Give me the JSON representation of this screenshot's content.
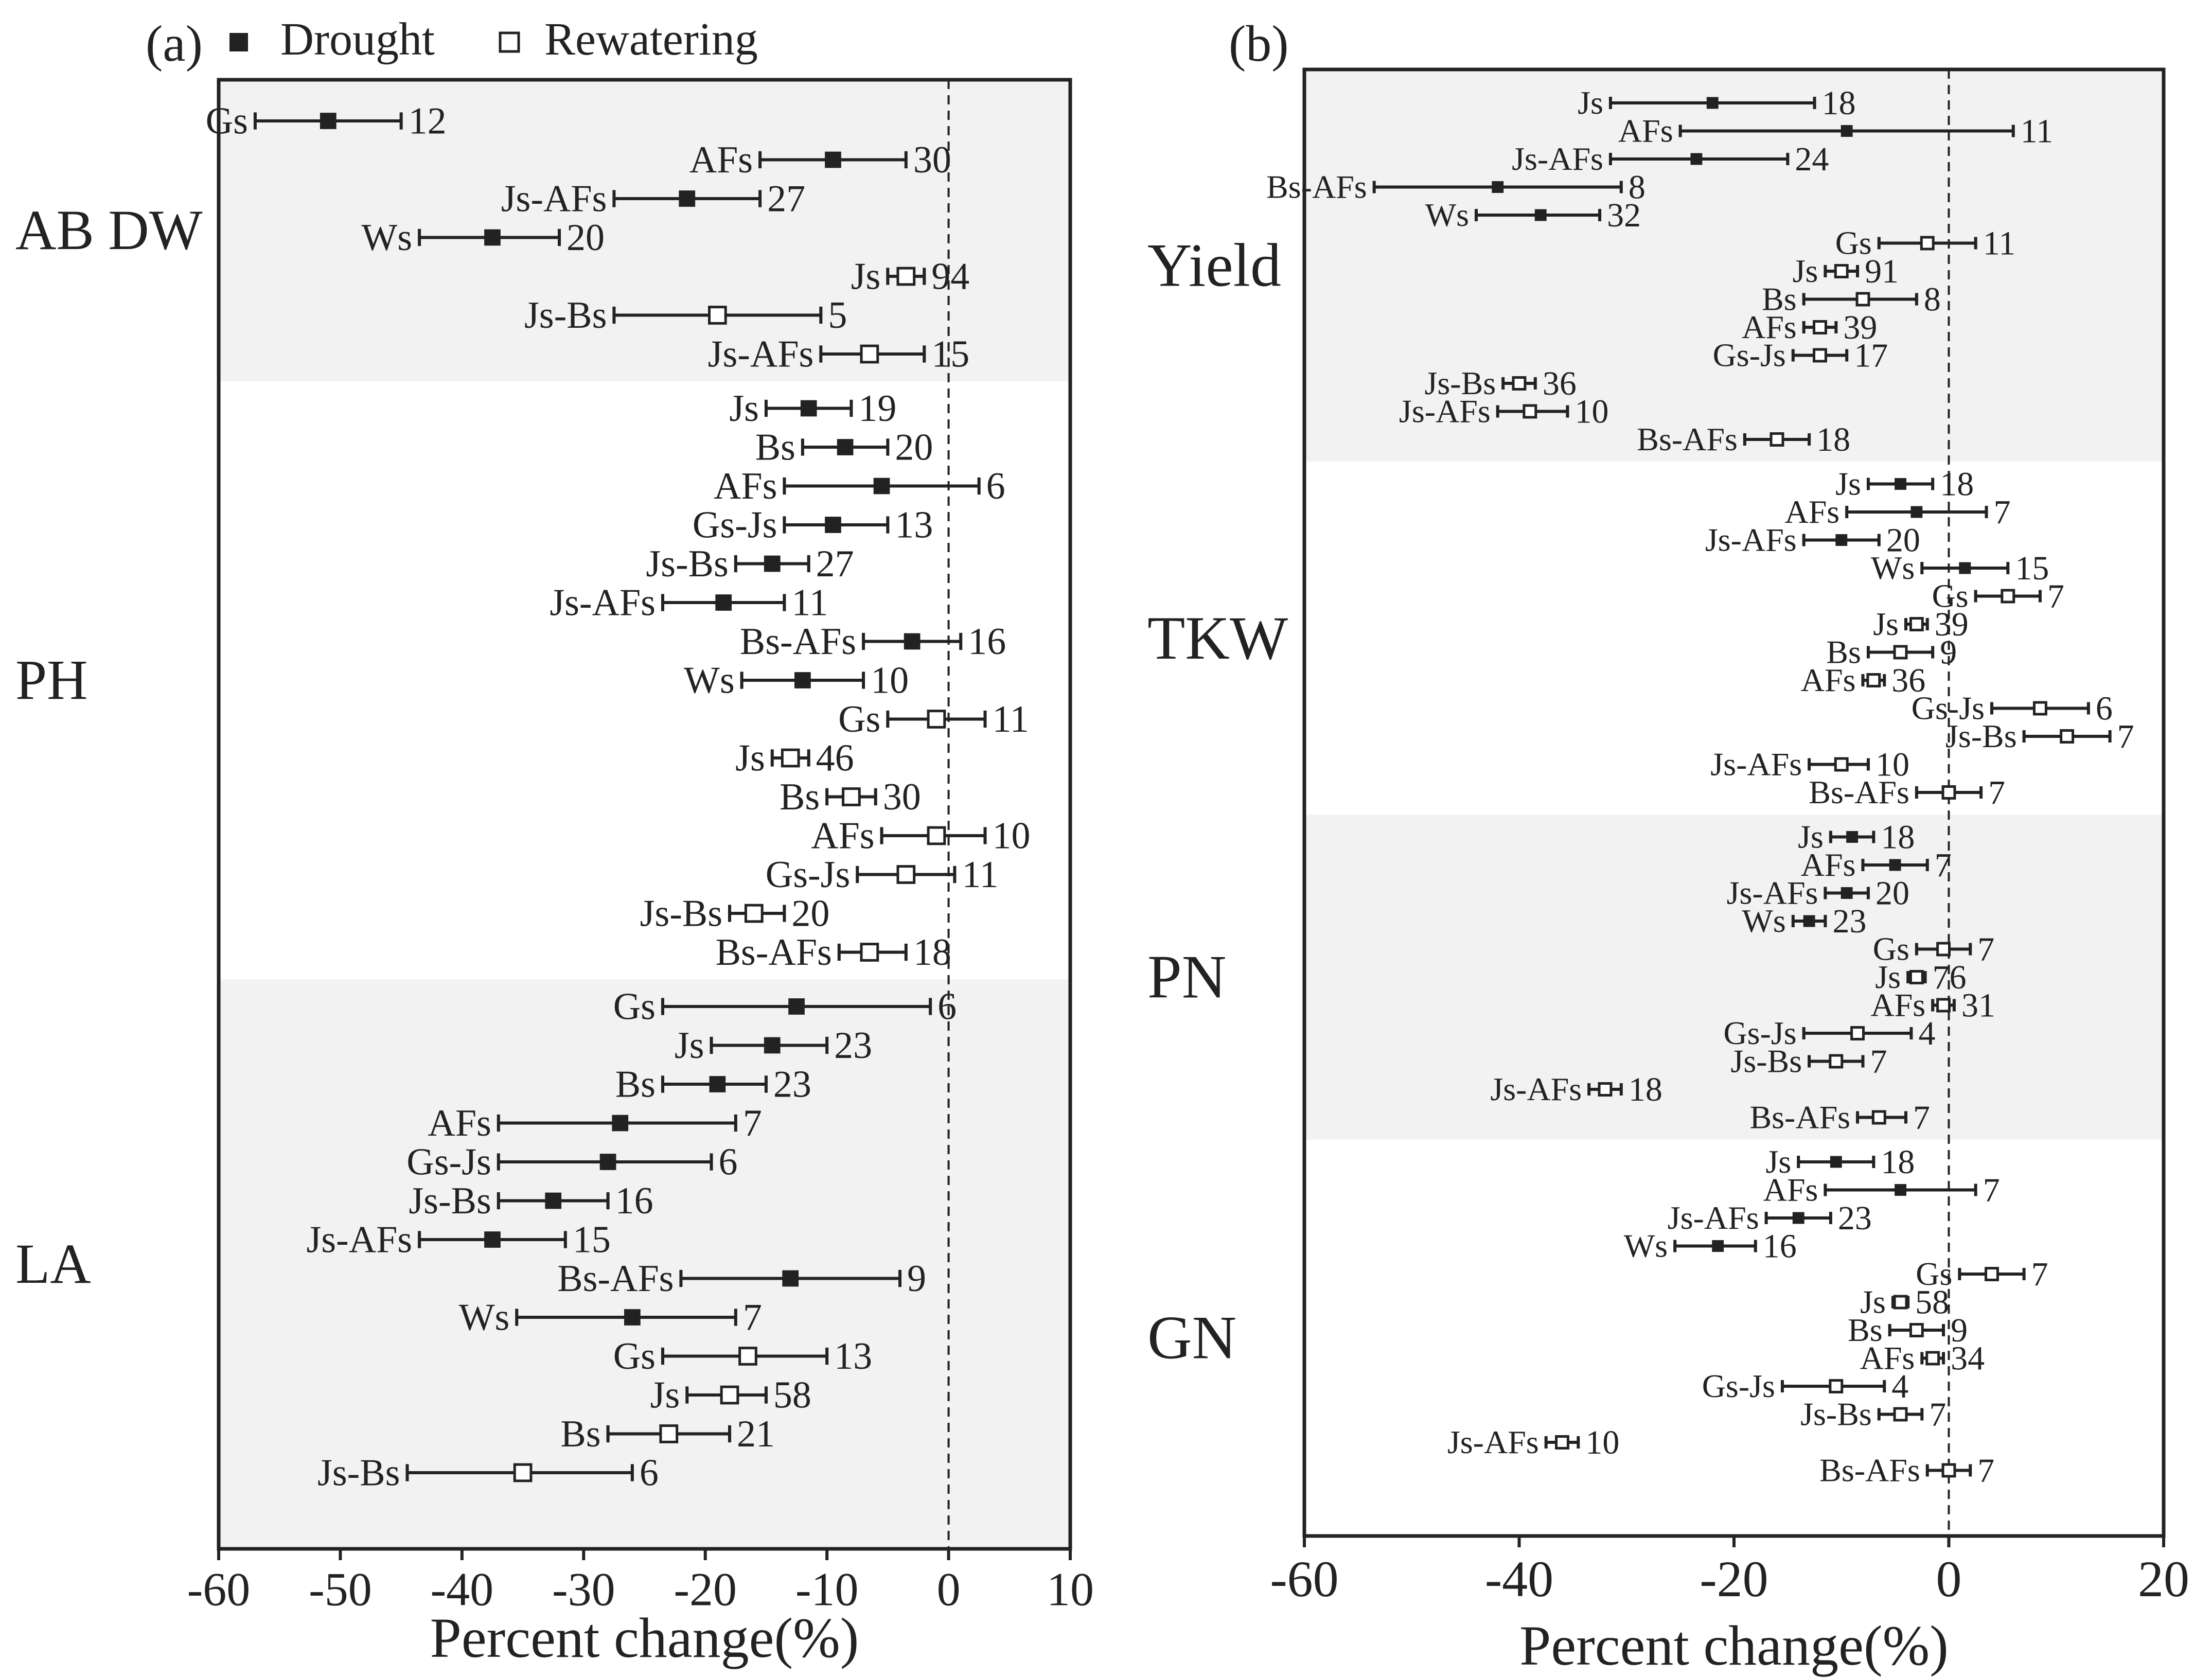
{
  "legend": {
    "drought": "Drought",
    "rewatering": "Rewatering"
  },
  "colors": {
    "panel_band": "#f2f2f2",
    "axis": "#222222",
    "drought_marker": "#222222",
    "rewatering_marker_fill": "#ffffff"
  },
  "chart_data": [
    {
      "type": "forest-plot",
      "panel_label": "(a)",
      "xlabel": "Percent change(%)",
      "xlim": [
        -60,
        10
      ],
      "xticks": [
        -60,
        -50,
        -40,
        -30,
        -20,
        -10,
        0,
        10
      ],
      "reference_line": 0,
      "groups": [
        {
          "label": "AB DW",
          "shaded": true,
          "rows": [
            {
              "treatment": "Gs",
              "condition": "Drought",
              "mean": -51,
              "lower": -57,
              "upper": -45,
              "n": "12"
            },
            {
              "treatment": "AFs",
              "condition": "Drought",
              "mean": -9.5,
              "lower": -15.5,
              "upper": -3.5,
              "n": "30"
            },
            {
              "treatment": "Js-AFs",
              "condition": "Drought",
              "mean": -21.5,
              "lower": -27.5,
              "upper": -15.5,
              "n": "27"
            },
            {
              "treatment": "Ws",
              "condition": "Drought",
              "mean": -37.5,
              "lower": -43.5,
              "upper": -32,
              "n": "20"
            },
            {
              "treatment": "Js",
              "condition": "Rewatering",
              "mean": -3.5,
              "lower": -5,
              "upper": -2,
              "n": "94"
            },
            {
              "treatment": "Js-Bs",
              "condition": "Rewatering",
              "mean": -19,
              "lower": -27.5,
              "upper": -10.5,
              "n": "5"
            },
            {
              "treatment": "Js-AFs",
              "condition": "Rewatering",
              "mean": -6.5,
              "lower": -10.5,
              "upper": -2,
              "n": "15"
            }
          ]
        },
        {
          "label": "PH",
          "shaded": false,
          "rows": [
            {
              "treatment": "Js",
              "condition": "Drought",
              "mean": -11.5,
              "lower": -15,
              "upper": -8,
              "n": "19"
            },
            {
              "treatment": "Bs",
              "condition": "Drought",
              "mean": -8.5,
              "lower": -12,
              "upper": -5,
              "n": "20"
            },
            {
              "treatment": "AFs",
              "condition": "Drought",
              "mean": -5.5,
              "lower": -13.5,
              "upper": 2.5,
              "n": "6"
            },
            {
              "treatment": "Gs-Js",
              "condition": "Drought",
              "mean": -9.5,
              "lower": -13.5,
              "upper": -5,
              "n": "13"
            },
            {
              "treatment": "Js-Bs",
              "condition": "Drought",
              "mean": -14.5,
              "lower": -17.5,
              "upper": -11.5,
              "n": "27"
            },
            {
              "treatment": "Js-AFs",
              "condition": "Drought",
              "mean": -18.5,
              "lower": -23.5,
              "upper": -13.5,
              "n": "11"
            },
            {
              "treatment": "Bs-AFs",
              "condition": "Drought",
              "mean": -3,
              "lower": -7,
              "upper": 1,
              "n": "16"
            },
            {
              "treatment": "Ws",
              "condition": "Drought",
              "mean": -12,
              "lower": -17,
              "upper": -7,
              "n": "10"
            },
            {
              "treatment": "Gs",
              "condition": "Rewatering",
              "mean": -1,
              "lower": -5,
              "upper": 3,
              "n": "11"
            },
            {
              "treatment": "Js",
              "condition": "Rewatering",
              "mean": -13,
              "lower": -14.5,
              "upper": -11.5,
              "n": "46"
            },
            {
              "treatment": "Bs",
              "condition": "Rewatering",
              "mean": -8,
              "lower": -10,
              "upper": -6,
              "n": "30"
            },
            {
              "treatment": "AFs",
              "condition": "Rewatering",
              "mean": -1,
              "lower": -5.5,
              "upper": 3,
              "n": "10"
            },
            {
              "treatment": "Gs-Js",
              "condition": "Rewatering",
              "mean": -3.5,
              "lower": -7.5,
              "upper": 0.5,
              "n": "11"
            },
            {
              "treatment": "Js-Bs",
              "condition": "Rewatering",
              "mean": -16,
              "lower": -18,
              "upper": -13.5,
              "n": "20"
            },
            {
              "treatment": "Bs-AFs",
              "condition": "Rewatering",
              "mean": -6.5,
              "lower": -9,
              "upper": -3.5,
              "n": "18"
            }
          ]
        },
        {
          "label": "LA",
          "shaded": true,
          "rows": [
            {
              "treatment": "Gs",
              "condition": "Drought",
              "mean": -12.5,
              "lower": -23.5,
              "upper": -1.5,
              "n": "6"
            },
            {
              "treatment": "Js",
              "condition": "Drought",
              "mean": -14.5,
              "lower": -19.5,
              "upper": -10,
              "n": "23"
            },
            {
              "treatment": "Bs",
              "condition": "Drought",
              "mean": -19,
              "lower": -23.5,
              "upper": -15,
              "n": "23"
            },
            {
              "treatment": "AFs",
              "condition": "Drought",
              "mean": -27,
              "lower": -37,
              "upper": -17.5,
              "n": "7"
            },
            {
              "treatment": "Gs-Js",
              "condition": "Drought",
              "mean": -28,
              "lower": -37,
              "upper": -19.5,
              "n": "6"
            },
            {
              "treatment": "Js-Bs",
              "condition": "Drought",
              "mean": -32.5,
              "lower": -37,
              "upper": -28,
              "n": "16"
            },
            {
              "treatment": "Js-AFs",
              "condition": "Drought",
              "mean": -37.5,
              "lower": -43.5,
              "upper": -31.5,
              "n": "15"
            },
            {
              "treatment": "Bs-AFs",
              "condition": "Drought",
              "mean": -13,
              "lower": -22,
              "upper": -4,
              "n": "9"
            },
            {
              "treatment": "Ws",
              "condition": "Drought",
              "mean": -26,
              "lower": -35.5,
              "upper": -17.5,
              "n": "7"
            },
            {
              "treatment": "Gs",
              "condition": "Rewatering",
              "mean": -16.5,
              "lower": -23.5,
              "upper": -10,
              "n": "13"
            },
            {
              "treatment": "Js",
              "condition": "Rewatering",
              "mean": -18,
              "lower": -21.5,
              "upper": -15,
              "n": "58"
            },
            {
              "treatment": "Bs",
              "condition": "Rewatering",
              "mean": -23,
              "lower": -28,
              "upper": -18,
              "n": "21"
            },
            {
              "treatment": "Js-Bs",
              "condition": "Rewatering",
              "mean": -35,
              "lower": -44.5,
              "upper": -26,
              "n": "6"
            }
          ]
        }
      ]
    },
    {
      "type": "forest-plot",
      "panel_label": "(b)",
      "xlabel": "Percent change(%)",
      "xlim": [
        -60,
        20
      ],
      "xticks": [
        -60,
        -40,
        -20,
        0,
        20
      ],
      "reference_line": 0,
      "groups": [
        {
          "label": "Yield",
          "shaded": true,
          "rows": [
            {
              "treatment": "Js",
              "condition": "Drought",
              "mean": -22,
              "lower": -31.5,
              "upper": -12.5,
              "n": "18"
            },
            {
              "treatment": "AFs",
              "condition": "Drought",
              "mean": -9.5,
              "lower": -25,
              "upper": 6,
              "n": "11"
            },
            {
              "treatment": "Js-AFs",
              "condition": "Drought",
              "mean": -23.5,
              "lower": -31.5,
              "upper": -15,
              "n": "24"
            },
            {
              "treatment": "Bs-AFs",
              "condition": "Drought",
              "mean": -42,
              "lower": -53.5,
              "upper": -30.5,
              "n": "8"
            },
            {
              "treatment": "Ws",
              "condition": "Drought",
              "mean": -38,
              "lower": -44,
              "upper": -32.5,
              "n": "32"
            },
            {
              "treatment": "Gs",
              "condition": "Rewatering",
              "mean": -2,
              "lower": -6.5,
              "upper": 2.5,
              "n": "11"
            },
            {
              "treatment": "Js",
              "condition": "Rewatering",
              "mean": -10,
              "lower": -11.5,
              "upper": -8.5,
              "n": "91"
            },
            {
              "treatment": "Bs",
              "condition": "Rewatering",
              "mean": -8,
              "lower": -13.5,
              "upper": -3,
              "n": "8"
            },
            {
              "treatment": "AFs",
              "condition": "Rewatering",
              "mean": -12,
              "lower": -13.5,
              "upper": -10.5,
              "n": "39"
            },
            {
              "treatment": "Gs-Js",
              "condition": "Rewatering",
              "mean": -12,
              "lower": -14.5,
              "upper": -9.5,
              "n": "17"
            },
            {
              "treatment": "Js-Bs",
              "condition": "Rewatering",
              "mean": -40,
              "lower": -41.5,
              "upper": -38.5,
              "n": "36"
            },
            {
              "treatment": "Js-AFs",
              "condition": "Rewatering",
              "mean": -39,
              "lower": -42,
              "upper": -35.5,
              "n": "10"
            },
            {
              "treatment": "Bs-AFs",
              "condition": "Rewatering",
              "mean": -16,
              "lower": -19,
              "upper": -13,
              "n": "18"
            }
          ]
        },
        {
          "label": "TKW",
          "shaded": false,
          "rows": [
            {
              "treatment": "Js",
              "condition": "Drought",
              "mean": -4.5,
              "lower": -7.5,
              "upper": -1.5,
              "n": "18"
            },
            {
              "treatment": "AFs",
              "condition": "Drought",
              "mean": -3,
              "lower": -9.5,
              "upper": 3.5,
              "n": "7"
            },
            {
              "treatment": "Js-AFs",
              "condition": "Drought",
              "mean": -10,
              "lower": -13.5,
              "upper": -6.5,
              "n": "20"
            },
            {
              "treatment": "Ws",
              "condition": "Drought",
              "mean": 1.5,
              "lower": -2.5,
              "upper": 5.5,
              "n": "15"
            },
            {
              "treatment": "Gs",
              "condition": "Rewatering",
              "mean": 5.5,
              "lower": 2.5,
              "upper": 8.5,
              "n": "7"
            },
            {
              "treatment": "Js",
              "condition": "Rewatering",
              "mean": -3,
              "lower": -4,
              "upper": -2,
              "n": "39"
            },
            {
              "treatment": "Bs",
              "condition": "Rewatering",
              "mean": -4.5,
              "lower": -7.5,
              "upper": -1.5,
              "n": "9"
            },
            {
              "treatment": "AFs",
              "condition": "Rewatering",
              "mean": -7,
              "lower": -8,
              "upper": -6,
              "n": "36"
            },
            {
              "treatment": "Gs-Js",
              "condition": "Rewatering",
              "mean": 8.5,
              "lower": 4,
              "upper": 13,
              "n": "6"
            },
            {
              "treatment": "Js-Bs",
              "condition": "Rewatering",
              "mean": 11,
              "lower": 7,
              "upper": 15,
              "n": "7"
            },
            {
              "treatment": "Js-AFs",
              "condition": "Rewatering",
              "mean": -10,
              "lower": -13,
              "upper": -7.5,
              "n": "10"
            },
            {
              "treatment": "Bs-AFs",
              "condition": "Rewatering",
              "mean": 0,
              "lower": -3,
              "upper": 3,
              "n": "7"
            }
          ]
        },
        {
          "label": "PN",
          "shaded": true,
          "rows": [
            {
              "treatment": "Js",
              "condition": "Drought",
              "mean": -9,
              "lower": -11,
              "upper": -7,
              "n": "18"
            },
            {
              "treatment": "AFs",
              "condition": "Drought",
              "mean": -5,
              "lower": -8,
              "upper": -2,
              "n": "7"
            },
            {
              "treatment": "Js-AFs",
              "condition": "Drought",
              "mean": -9.5,
              "lower": -11.5,
              "upper": -7.5,
              "n": "20"
            },
            {
              "treatment": "Ws",
              "condition": "Drought",
              "mean": -13,
              "lower": -14.5,
              "upper": -11.5,
              "n": "23"
            },
            {
              "treatment": "Gs",
              "condition": "Rewatering",
              "mean": -0.5,
              "lower": -3,
              "upper": 2,
              "n": "7"
            },
            {
              "treatment": "Js",
              "condition": "Rewatering",
              "mean": -3,
              "lower": -3.8,
              "upper": -2.2,
              "n": "76"
            },
            {
              "treatment": "AFs",
              "condition": "Rewatering",
              "mean": -0.5,
              "lower": -1.5,
              "upper": 0.5,
              "n": "31"
            },
            {
              "treatment": "Gs-Js",
              "condition": "Rewatering",
              "mean": -8.5,
              "lower": -13.5,
              "upper": -3.5,
              "n": "4"
            },
            {
              "treatment": "Js-Bs",
              "condition": "Rewatering",
              "mean": -10.5,
              "lower": -13,
              "upper": -8,
              "n": "7"
            },
            {
              "treatment": "Js-AFs",
              "condition": "Rewatering",
              "mean": -32,
              "lower": -33.5,
              "upper": -30.5,
              "n": "18"
            },
            {
              "treatment": "Bs-AFs",
              "condition": "Rewatering",
              "mean": -6.5,
              "lower": -8.5,
              "upper": -4,
              "n": "7"
            }
          ]
        },
        {
          "label": "GN",
          "shaded": false,
          "rows": [
            {
              "treatment": "Js",
              "condition": "Drought",
              "mean": -10.5,
              "lower": -14,
              "upper": -7,
              "n": "18"
            },
            {
              "treatment": "AFs",
              "condition": "Drought",
              "mean": -4.5,
              "lower": -11.5,
              "upper": 2.5,
              "n": "7"
            },
            {
              "treatment": "Js-AFs",
              "condition": "Drought",
              "mean": -14,
              "lower": -17,
              "upper": -11,
              "n": "23"
            },
            {
              "treatment": "Ws",
              "condition": "Drought",
              "mean": -21.5,
              "lower": -25.5,
              "upper": -18,
              "n": "16"
            },
            {
              "treatment": "Gs",
              "condition": "Rewatering",
              "mean": 4,
              "lower": 1,
              "upper": 7,
              "n": "7"
            },
            {
              "treatment": "Js",
              "condition": "Rewatering",
              "mean": -4.5,
              "lower": -5.2,
              "upper": -3.8,
              "n": "58"
            },
            {
              "treatment": "Bs",
              "condition": "Rewatering",
              "mean": -3,
              "lower": -5.5,
              "upper": -0.5,
              "n": "9"
            },
            {
              "treatment": "AFs",
              "condition": "Rewatering",
              "mean": -1.5,
              "lower": -2.5,
              "upper": -0.5,
              "n": "34"
            },
            {
              "treatment": "Gs-Js",
              "condition": "Rewatering",
              "mean": -10.5,
              "lower": -15.5,
              "upper": -6,
              "n": "4"
            },
            {
              "treatment": "Js-Bs",
              "condition": "Rewatering",
              "mean": -4.5,
              "lower": -6.5,
              "upper": -2.5,
              "n": "7"
            },
            {
              "treatment": "Js-AFs",
              "condition": "Rewatering",
              "mean": -36,
              "lower": -37.5,
              "upper": -34.5,
              "n": "10"
            },
            {
              "treatment": "Bs-AFs",
              "condition": "Rewatering",
              "mean": 0,
              "lower": -2,
              "upper": 2,
              "n": "7"
            }
          ]
        }
      ]
    }
  ]
}
